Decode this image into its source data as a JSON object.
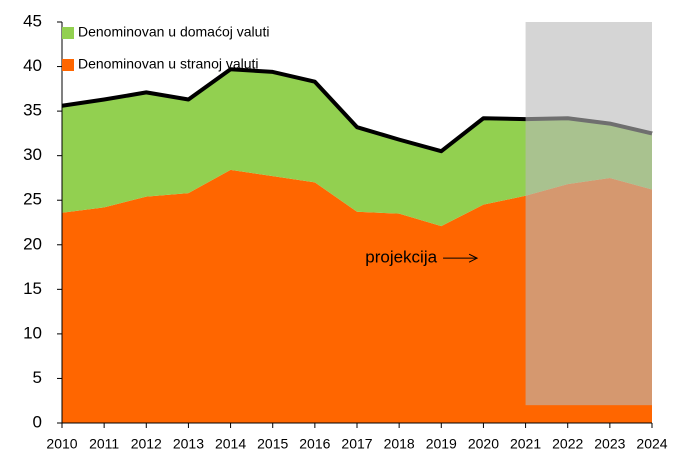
{
  "chart_data": {
    "type": "stacked_area",
    "x": [
      2010,
      2011,
      2012,
      2013,
      2014,
      2015,
      2016,
      2017,
      2018,
      2019,
      2020,
      2021,
      2022,
      2023,
      2024
    ],
    "series": [
      {
        "name": "Denominovan u stranoj valuti",
        "color": "#ff6600",
        "values": [
          23.6,
          24.2,
          25.4,
          25.8,
          28.4,
          27.7,
          27.0,
          23.7,
          23.5,
          22.1,
          24.5,
          25.5,
          26.8,
          27.5,
          26.2
        ]
      },
      {
        "name": "Denominovan u domaćoj valuti",
        "color": "#92d050",
        "values": [
          12.0,
          12.1,
          11.7,
          10.5,
          11.3,
          11.7,
          11.3,
          9.5,
          8.3,
          8.4,
          9.7,
          8.6,
          7.4,
          6.1,
          6.3
        ]
      }
    ],
    "total_line_color": "#000000",
    "xlim": [
      2010,
      2024
    ],
    "xticks": [
      2010,
      2011,
      2012,
      2013,
      2014,
      2015,
      2016,
      2017,
      2018,
      2019,
      2020,
      2021,
      2022,
      2023,
      2024
    ],
    "ylim": [
      0,
      45
    ],
    "yticks": [
      0,
      5,
      10,
      15,
      20,
      25,
      30,
      35,
      40,
      45
    ],
    "shade": {
      "x": [
        2021,
        2024
      ],
      "y": [
        2,
        45
      ],
      "color": "rgba(185,185,185,0.6)"
    },
    "annotation": {
      "text": "projekcija",
      "x": 2018.9,
      "y": 18.5
    }
  }
}
